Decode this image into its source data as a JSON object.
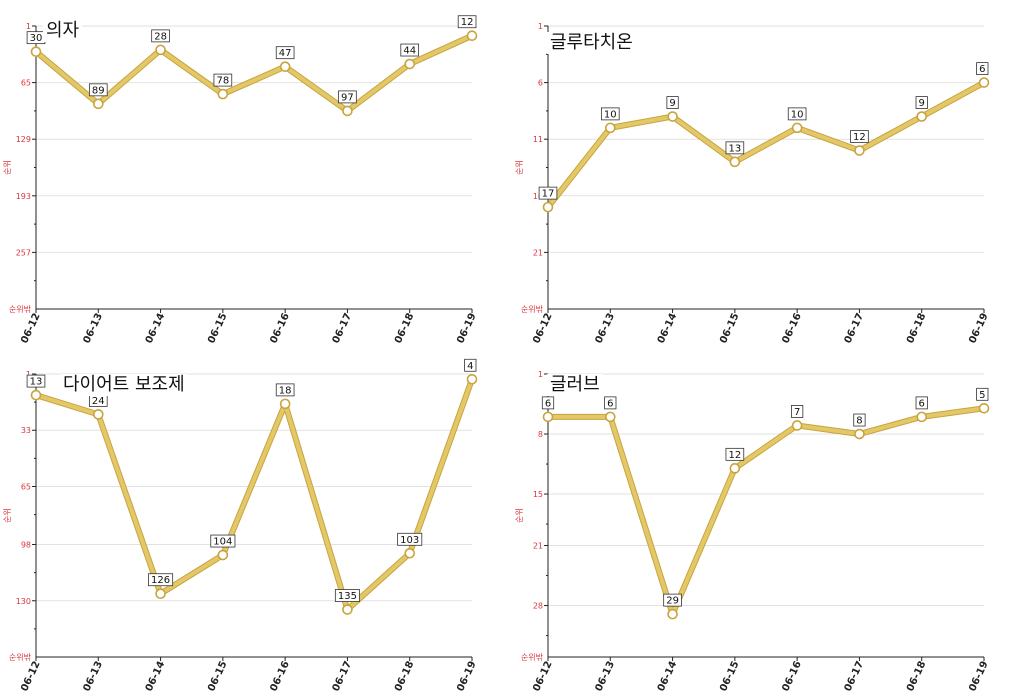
{
  "colors": {
    "line": "#e3c869",
    "line_outline": "#c9a43c",
    "tick_label": "#d9363e",
    "grid": "#e2e2e2"
  },
  "chart_data": [
    {
      "type": "line",
      "title": "의자",
      "ylabel": "순위",
      "ybottom_label": "순위밖",
      "y_inverted": true,
      "ylim": [
        1,
        321
      ],
      "yticks": [
        1,
        65,
        129,
        193,
        257
      ],
      "categories": [
        "06-12",
        "06-13",
        "06-14",
        "06-15",
        "06-16",
        "06-17",
        "06-18",
        "06-19"
      ],
      "values": [
        30,
        89,
        28,
        78,
        47,
        97,
        44,
        12
      ]
    },
    {
      "type": "line",
      "title": "글루타치온",
      "ylabel": "순위",
      "ybottom_label": "순위밖",
      "y_inverted": true,
      "ylim": [
        1,
        26
      ],
      "yticks": [
        1,
        6,
        11,
        16,
        21
      ],
      "categories": [
        "06-12",
        "06-13",
        "06-14",
        "06-15",
        "06-16",
        "06-17",
        "06-18",
        "06-19"
      ],
      "values": [
        17,
        10,
        9,
        13,
        10,
        12,
        9,
        6
      ]
    },
    {
      "type": "line",
      "title": "다이어트 보조제",
      "ylabel": "순위",
      "ybottom_label": "순위밖",
      "y_inverted": true,
      "ylim": [
        1,
        162
      ],
      "yticks": [
        1,
        33,
        65,
        98,
        130
      ],
      "categories": [
        "06-12",
        "06-13",
        "06-14",
        "06-15",
        "06-16",
        "06-17",
        "06-18",
        "06-19"
      ],
      "values": [
        13,
        24,
        126,
        104,
        18,
        135,
        103,
        4
      ]
    },
    {
      "type": "line",
      "title": "글러브",
      "ylabel": "순위",
      "ybottom_label": "순위밖",
      "y_inverted": true,
      "ylim": [
        1,
        34
      ],
      "yticks": [
        1,
        8,
        15,
        21,
        28
      ],
      "categories": [
        "06-12",
        "06-13",
        "06-14",
        "06-15",
        "06-16",
        "06-17",
        "06-18",
        "06-19"
      ],
      "values": [
        6,
        6,
        29,
        12,
        7,
        8,
        6,
        5
      ]
    }
  ]
}
